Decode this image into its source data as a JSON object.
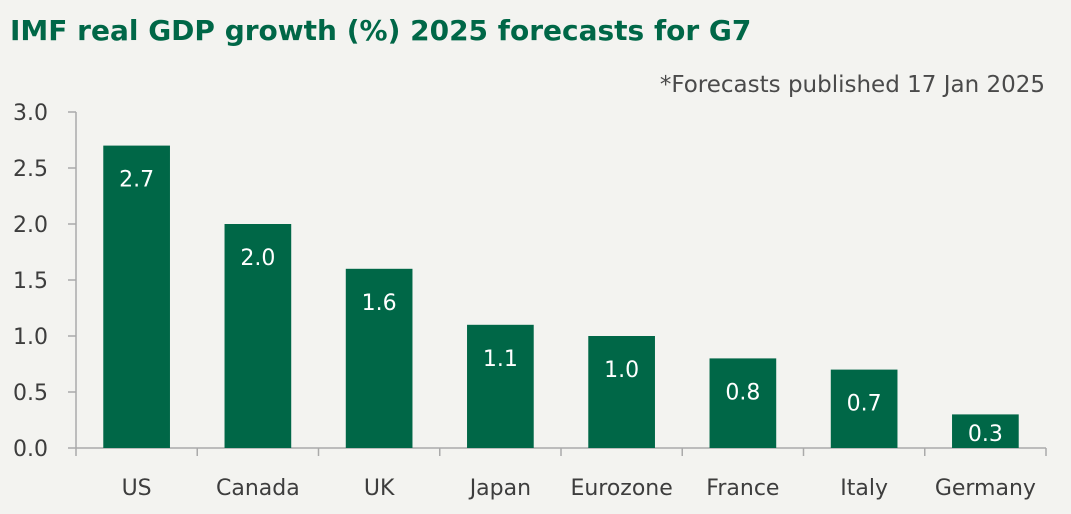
{
  "chart_data": {
    "type": "bar",
    "title": "IMF real GDP growth (%) 2025 forecasts for G7",
    "note": "*Forecasts published 17 Jan 2025",
    "categories": [
      "US",
      "Canada",
      "UK",
      "Japan",
      "Eurozone",
      "France",
      "Italy",
      "Germany"
    ],
    "values": [
      2.7,
      2.0,
      1.6,
      1.1,
      1.0,
      0.8,
      0.7,
      0.3
    ],
    "data_labels": [
      "2.7",
      "2.0",
      "1.6",
      "1.1",
      "1.0",
      "0.8",
      "0.7",
      "0.3"
    ],
    "yticks": [
      "0.0",
      "0.5",
      "1.0",
      "1.5",
      "2.0",
      "2.5",
      "3.0"
    ],
    "ylim": [
      0,
      3
    ],
    "xlabel": "",
    "ylabel": "",
    "grid": false,
    "legend": "none",
    "colors": {
      "bar": "#006747",
      "title": "#006747",
      "axis": "#aaaaaa",
      "text": "#3d3d3d",
      "background": "#f3f3f0"
    }
  }
}
